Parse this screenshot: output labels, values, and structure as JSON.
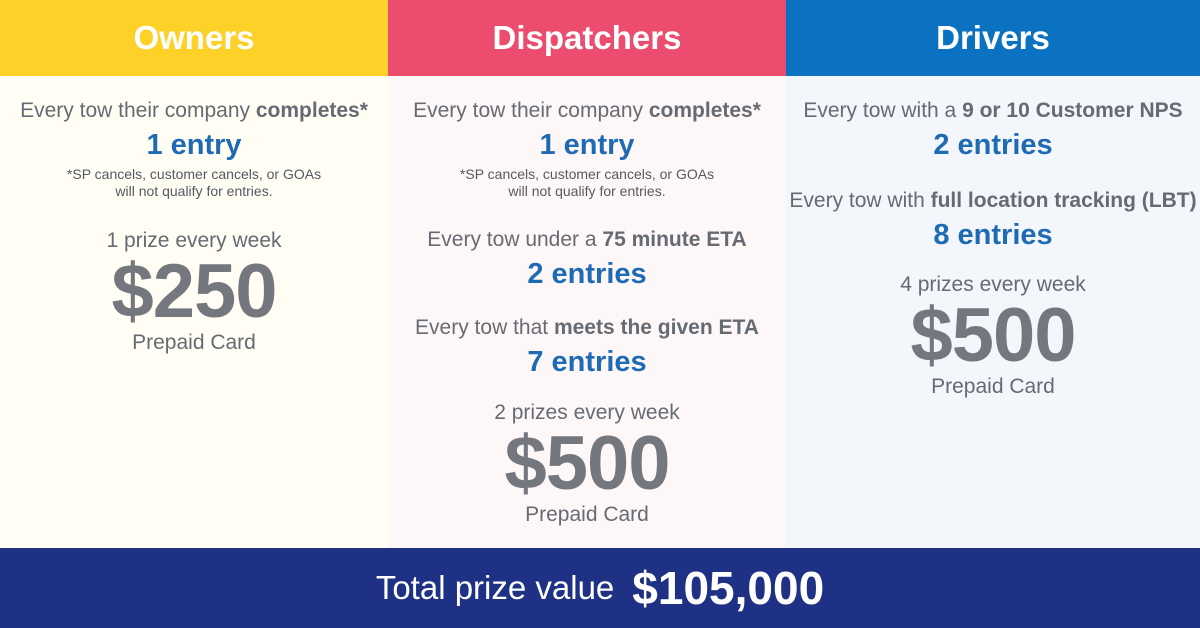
{
  "colors": {
    "owners_header": "#fdd128",
    "dispatchers_header": "#ec4d6e",
    "drivers_header": "#0a72c1",
    "footer": "#1f3184",
    "entries_text": "#1e6bb4",
    "amount_text": "#74777d"
  },
  "owners": {
    "title": "Owners",
    "rule1": {
      "pre": "Every tow their company ",
      "bold": "completes*",
      "entries": "1 entry"
    },
    "footnote_line1": "*SP cancels, customer cancels, or GOAs",
    "footnote_line2": "will not qualify for entries.",
    "prize_note": "1 prize every week",
    "amount": "$250",
    "card": "Prepaid Card"
  },
  "dispatchers": {
    "title": "Dispatchers",
    "rule1": {
      "pre": "Every tow their company ",
      "bold": "completes*",
      "entries": "1 entry"
    },
    "footnote_line1": "*SP cancels, customer cancels, or GOAs",
    "footnote_line2": "will not qualify for entries.",
    "rule2": {
      "pre": "Every tow under a ",
      "bold": "75 minute ETA",
      "entries": "2 entries"
    },
    "rule3": {
      "pre": "Every tow that ",
      "bold": "meets the given ETA",
      "entries": "7 entries"
    },
    "prize_note": "2 prizes every week",
    "amount": "$500",
    "card": "Prepaid Card"
  },
  "drivers": {
    "title": "Drivers",
    "rule1": {
      "pre": "Every tow with a ",
      "bold": "9 or 10 Customer NPS",
      "entries": "2 entries"
    },
    "rule2": {
      "pre": "Every tow with ",
      "bold": "full location tracking (LBT)",
      "entries": "8 entries"
    },
    "prize_note": "4 prizes every week",
    "amount": "$500",
    "card": "Prepaid Card"
  },
  "footer": {
    "label": "Total prize value",
    "value": "$105,000"
  }
}
